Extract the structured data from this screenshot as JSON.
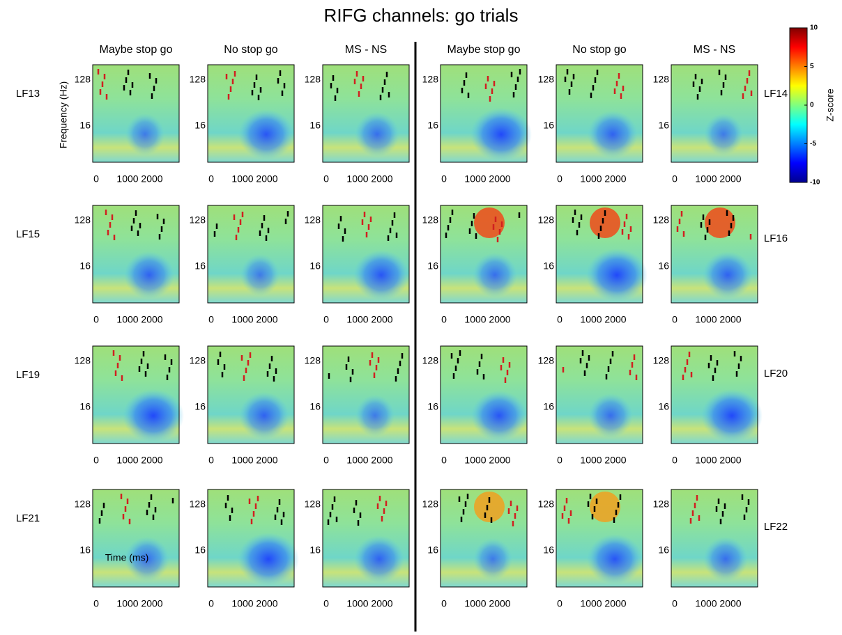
{
  "title": "RIFG channels: go trials",
  "column_titles": [
    "Maybe stop go",
    "No stop go",
    "MS - NS",
    "Maybe stop go",
    "No stop go",
    "MS - NS"
  ],
  "row_labels_left": [
    "LF13",
    "LF15",
    "LF19",
    "LF21"
  ],
  "row_labels_right": [
    "LF14",
    "LF16",
    "LF20",
    "LF22"
  ],
  "y_axis_label": "Frequency (Hz)",
  "x_axis_label": "Time (ms)",
  "xticks": [
    0,
    1000,
    2000
  ],
  "yticks": [
    128,
    16
  ],
  "colorbar": {
    "label": "Z-score",
    "lim": [
      -10,
      10
    ],
    "ticks": [
      10,
      5,
      0,
      -5,
      -10
    ]
  }
}
